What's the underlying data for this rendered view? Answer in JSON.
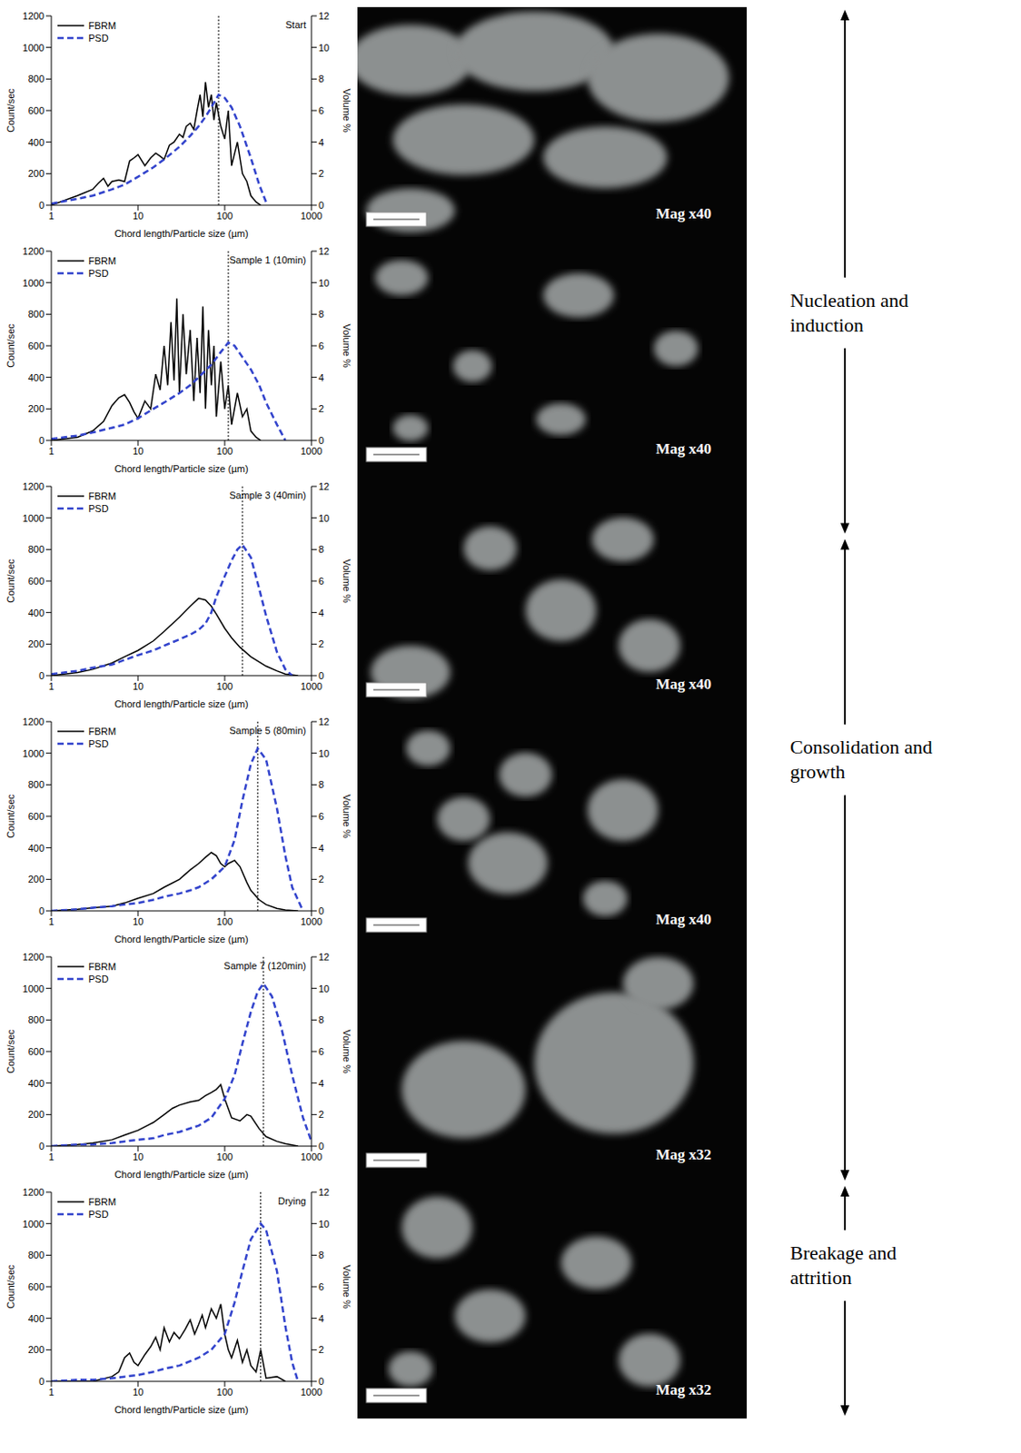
{
  "chart_data": [
    {
      "type": "line",
      "title": "Start",
      "x_label": "Chord length/Particle size (µm)",
      "y_label": "Count/sec",
      "y2_label": "Volume %",
      "log": "x",
      "xlim": [
        1,
        1000
      ],
      "xticks": [
        1,
        10,
        100,
        1000
      ],
      "ylim": [
        0,
        1200
      ],
      "yticks": [
        0,
        200,
        400,
        600,
        800,
        1000,
        1200
      ],
      "y2lim": [
        0,
        12
      ],
      "y2ticks": [
        0,
        2,
        4,
        6,
        8,
        10,
        12
      ],
      "legend": "upper left",
      "reference_x": 85,
      "series": [
        {
          "name": "FBRM",
          "color": "#000000",
          "line_style": "solid",
          "x": [
            1,
            2,
            3,
            3.5,
            4,
            4.5,
            5,
            6,
            7,
            8,
            9,
            10,
            12,
            14,
            16,
            18,
            20,
            23,
            26,
            30,
            33,
            36,
            40,
            44,
            48,
            52,
            56,
            60,
            65,
            70,
            75,
            80,
            90,
            100,
            110,
            120,
            140,
            160,
            180,
            200,
            230,
            260
          ],
          "values": [
            0,
            60,
            100,
            140,
            170,
            120,
            150,
            160,
            150,
            280,
            300,
            320,
            250,
            300,
            330,
            310,
            290,
            380,
            400,
            450,
            430,
            500,
            520,
            480,
            600,
            700,
            560,
            780,
            620,
            700,
            540,
            650,
            500,
            420,
            600,
            250,
            400,
            200,
            150,
            60,
            20,
            0
          ]
        },
        {
          "name": "PSD",
          "color": "#3344cc",
          "line_style": "dashed",
          "axis": "y2",
          "x": [
            1,
            2,
            3,
            5,
            7,
            10,
            15,
            20,
            30,
            40,
            50,
            60,
            70,
            85,
            100,
            120,
            150,
            200,
            250,
            300
          ],
          "values": [
            0.1,
            0.4,
            0.6,
            1,
            1.3,
            1.8,
            2.4,
            2.9,
            3.7,
            4.4,
            5,
            5.6,
            6.2,
            7.0,
            6.8,
            6.2,
            5,
            3,
            1.3,
            0.2
          ]
        }
      ]
    },
    {
      "type": "line",
      "title": "Sample 1 (10min)",
      "x_label": "Chord length/Particle size (µm)",
      "y_label": "Count/sec",
      "y2_label": "Volume %",
      "log": "x",
      "xlim": [
        1,
        1000
      ],
      "xticks": [
        1,
        10,
        100,
        1000
      ],
      "ylim": [
        0,
        1200
      ],
      "yticks": [
        0,
        200,
        400,
        600,
        800,
        1000,
        1200
      ],
      "y2lim": [
        0,
        12
      ],
      "y2ticks": [
        0,
        2,
        4,
        6,
        8,
        10,
        12
      ],
      "legend": "upper left",
      "reference_x": 110,
      "series": [
        {
          "name": "FBRM",
          "color": "#000000",
          "line_style": "solid",
          "x": [
            1,
            2,
            3,
            4,
            5,
            6,
            7,
            8,
            9,
            10,
            12,
            14,
            16,
            18,
            20,
            22,
            24,
            26,
            28,
            30,
            33,
            36,
            40,
            44,
            48,
            52,
            56,
            60,
            65,
            70,
            75,
            80,
            90,
            100,
            110,
            120,
            140,
            160,
            180,
            200,
            230,
            260
          ],
          "values": [
            0,
            20,
            60,
            120,
            220,
            270,
            290,
            240,
            180,
            140,
            250,
            200,
            420,
            320,
            600,
            350,
            750,
            380,
            900,
            300,
            800,
            420,
            700,
            250,
            650,
            300,
            850,
            200,
            700,
            350,
            600,
            150,
            500,
            200,
            350,
            100,
            300,
            150,
            200,
            60,
            20,
            0
          ]
        },
        {
          "name": "PSD",
          "color": "#3344cc",
          "line_style": "dashed",
          "axis": "y2",
          "x": [
            1,
            2,
            3,
            5,
            7,
            10,
            15,
            20,
            30,
            40,
            50,
            70,
            90,
            110,
            130,
            150,
            200,
            250,
            300,
            400,
            500
          ],
          "values": [
            0.1,
            0.3,
            0.5,
            0.8,
            1,
            1.4,
            2,
            2.4,
            3,
            3.5,
            4,
            4.8,
            5.6,
            6.2,
            6,
            5.5,
            4.5,
            3.5,
            2.4,
            1,
            0
          ]
        }
      ]
    },
    {
      "type": "line",
      "title": "Sample 3 (40min)",
      "x_label": "Chord length/Particle size (µm)",
      "y_label": "Count/sec",
      "y2_label": "Volume %",
      "log": "x",
      "xlim": [
        1,
        1000
      ],
      "xticks": [
        1,
        10,
        100,
        1000
      ],
      "ylim": [
        0,
        1200
      ],
      "yticks": [
        0,
        200,
        400,
        600,
        800,
        1000,
        1200
      ],
      "y2lim": [
        0,
        12
      ],
      "y2ticks": [
        0,
        2,
        4,
        6,
        8,
        10,
        12
      ],
      "legend": "upper left",
      "reference_x": 160,
      "series": [
        {
          "name": "FBRM",
          "color": "#000000",
          "line_style": "solid",
          "x": [
            1,
            2,
            3,
            5,
            7,
            10,
            15,
            20,
            30,
            40,
            50,
            60,
            70,
            80,
            100,
            120,
            150,
            200,
            300,
            400,
            500,
            700
          ],
          "values": [
            0,
            20,
            40,
            80,
            120,
            160,
            220,
            280,
            370,
            440,
            490,
            480,
            440,
            390,
            300,
            240,
            180,
            120,
            60,
            30,
            10,
            0
          ]
        },
        {
          "name": "PSD",
          "color": "#3344cc",
          "line_style": "dashed",
          "axis": "y2",
          "x": [
            1,
            2,
            3,
            5,
            7,
            10,
            15,
            20,
            30,
            40,
            50,
            60,
            70,
            80,
            100,
            120,
            140,
            160,
            200,
            250,
            300,
            400,
            500,
            600
          ],
          "values": [
            0.1,
            0.3,
            0.5,
            0.7,
            1,
            1.3,
            1.6,
            1.9,
            2.3,
            2.6,
            2.9,
            3.3,
            4,
            5,
            6.3,
            7.3,
            8,
            8.3,
            7.5,
            5.5,
            3.8,
            1.5,
            0.4,
            0
          ]
        }
      ]
    },
    {
      "type": "line",
      "title": "Sample 5 (80min)",
      "x_label": "Chord length/Particle size (µm)",
      "y_label": "Count/sec",
      "y2_label": "Volume %",
      "log": "x",
      "xlim": [
        1,
        1000
      ],
      "xticks": [
        1,
        10,
        100,
        1000
      ],
      "ylim": [
        0,
        1200
      ],
      "yticks": [
        0,
        200,
        400,
        600,
        800,
        1000,
        1200
      ],
      "y2lim": [
        0,
        12
      ],
      "y2ticks": [
        0,
        2,
        4,
        6,
        8,
        10,
        12
      ],
      "legend": "upper left",
      "reference_x": 240,
      "series": [
        {
          "name": "FBRM",
          "color": "#000000",
          "line_style": "solid",
          "x": [
            1,
            2,
            3,
            5,
            7,
            10,
            15,
            20,
            30,
            40,
            50,
            60,
            70,
            80,
            90,
            100,
            110,
            130,
            150,
            180,
            200,
            250,
            300,
            400,
            500,
            700
          ],
          "values": [
            0,
            10,
            20,
            30,
            50,
            80,
            110,
            150,
            200,
            260,
            300,
            340,
            370,
            350,
            300,
            280,
            300,
            320,
            280,
            180,
            130,
            70,
            40,
            15,
            5,
            0
          ]
        },
        {
          "name": "PSD",
          "color": "#3344cc",
          "line_style": "dashed",
          "axis": "y2",
          "x": [
            1,
            2,
            3,
            5,
            7,
            10,
            15,
            20,
            30,
            40,
            50,
            70,
            100,
            130,
            160,
            200,
            240,
            300,
            400,
            500,
            600,
            800
          ],
          "values": [
            0,
            0.1,
            0.2,
            0.3,
            0.4,
            0.5,
            0.7,
            0.9,
            1.1,
            1.3,
            1.5,
            2,
            2.8,
            4.5,
            7,
            9.3,
            10.3,
            9.6,
            6.5,
            3.5,
            1.5,
            0
          ]
        }
      ]
    },
    {
      "type": "line",
      "title": "Sample 7 (120min)",
      "x_label": "Chord length/Particle size (µm)",
      "y_label": "Count/sec",
      "y2_label": "Volume %",
      "log": "x",
      "xlim": [
        1,
        1000
      ],
      "xticks": [
        1,
        10,
        100,
        1000
      ],
      "ylim": [
        0,
        1200
      ],
      "yticks": [
        0,
        200,
        400,
        600,
        800,
        1000,
        1200
      ],
      "y2lim": [
        0,
        12
      ],
      "y2ticks": [
        0,
        2,
        4,
        6,
        8,
        10,
        12
      ],
      "legend": "upper left",
      "reference_x": 280,
      "series": [
        {
          "name": "FBRM",
          "color": "#000000",
          "line_style": "solid",
          "x": [
            1,
            2,
            3,
            5,
            7,
            10,
            15,
            20,
            25,
            30,
            40,
            50,
            60,
            70,
            80,
            90,
            100,
            120,
            150,
            180,
            200,
            250,
            300,
            400,
            500,
            700
          ],
          "values": [
            0,
            10,
            20,
            40,
            70,
            100,
            150,
            200,
            240,
            260,
            280,
            290,
            320,
            340,
            360,
            390,
            300,
            180,
            160,
            200,
            190,
            110,
            60,
            30,
            15,
            0
          ]
        },
        {
          "name": "PSD",
          "color": "#3344cc",
          "line_style": "dashed",
          "axis": "y2",
          "x": [
            1,
            2,
            3,
            5,
            7,
            10,
            15,
            20,
            30,
            50,
            70,
            100,
            130,
            160,
            200,
            240,
            280,
            350,
            450,
            600,
            800,
            1000
          ],
          "values": [
            0,
            0.1,
            0.1,
            0.2,
            0.3,
            0.4,
            0.5,
            0.7,
            0.9,
            1.3,
            1.8,
            3,
            4.5,
            6.5,
            8.5,
            9.8,
            10.3,
            9.5,
            7.5,
            4.5,
            1.8,
            0.3
          ]
        }
      ]
    },
    {
      "type": "line",
      "title": "Drying",
      "x_label": "Chord length/Particle size (µm)",
      "y_label": "Count/sec",
      "y2_label": "Volume %",
      "log": "x",
      "xlim": [
        1,
        1000
      ],
      "xticks": [
        1,
        10,
        100,
        1000
      ],
      "ylim": [
        0,
        1200
      ],
      "yticks": [
        0,
        200,
        400,
        600,
        800,
        1000,
        1200
      ],
      "y2lim": [
        0,
        12
      ],
      "y2ticks": [
        0,
        2,
        4,
        6,
        8,
        10,
        12
      ],
      "legend": "upper left",
      "reference_x": 260,
      "series": [
        {
          "name": "FBRM",
          "color": "#000000",
          "line_style": "solid",
          "x": [
            1,
            3,
            5,
            6,
            7,
            8,
            9,
            10,
            12,
            14,
            16,
            18,
            20,
            23,
            26,
            30,
            35,
            40,
            45,
            50,
            55,
            60,
            70,
            80,
            90,
            100,
            110,
            120,
            140,
            160,
            180,
            200,
            230,
            260,
            300,
            400,
            500
          ],
          "values": [
            0,
            0,
            30,
            60,
            150,
            180,
            120,
            100,
            170,
            220,
            280,
            200,
            340,
            250,
            310,
            270,
            330,
            390,
            300,
            360,
            420,
            340,
            460,
            400,
            490,
            300,
            200,
            150,
            260,
            120,
            200,
            100,
            60,
            200,
            20,
            30,
            0
          ]
        },
        {
          "name": "PSD",
          "color": "#3344cc",
          "line_style": "dashed",
          "axis": "y2",
          "x": [
            1,
            2,
            3,
            5,
            7,
            10,
            15,
            20,
            30,
            50,
            70,
            100,
            130,
            160,
            200,
            260,
            300,
            400,
            500,
            600,
            700
          ],
          "values": [
            0,
            0.1,
            0.1,
            0.2,
            0.3,
            0.4,
            0.6,
            0.8,
            1,
            1.5,
            2,
            3,
            5,
            7,
            9,
            10,
            9.6,
            7,
            3.5,
            1.2,
            0
          ]
        }
      ]
    }
  ],
  "images": {
    "magnification": [
      "Mag x40",
      "Mag x40",
      "Mag x40",
      "Mag x40",
      "Mag x32",
      "Mag x32"
    ]
  },
  "phases": [
    "Nucleation and induction",
    "Consolidation and growth",
    "Breakage and attrition"
  ]
}
